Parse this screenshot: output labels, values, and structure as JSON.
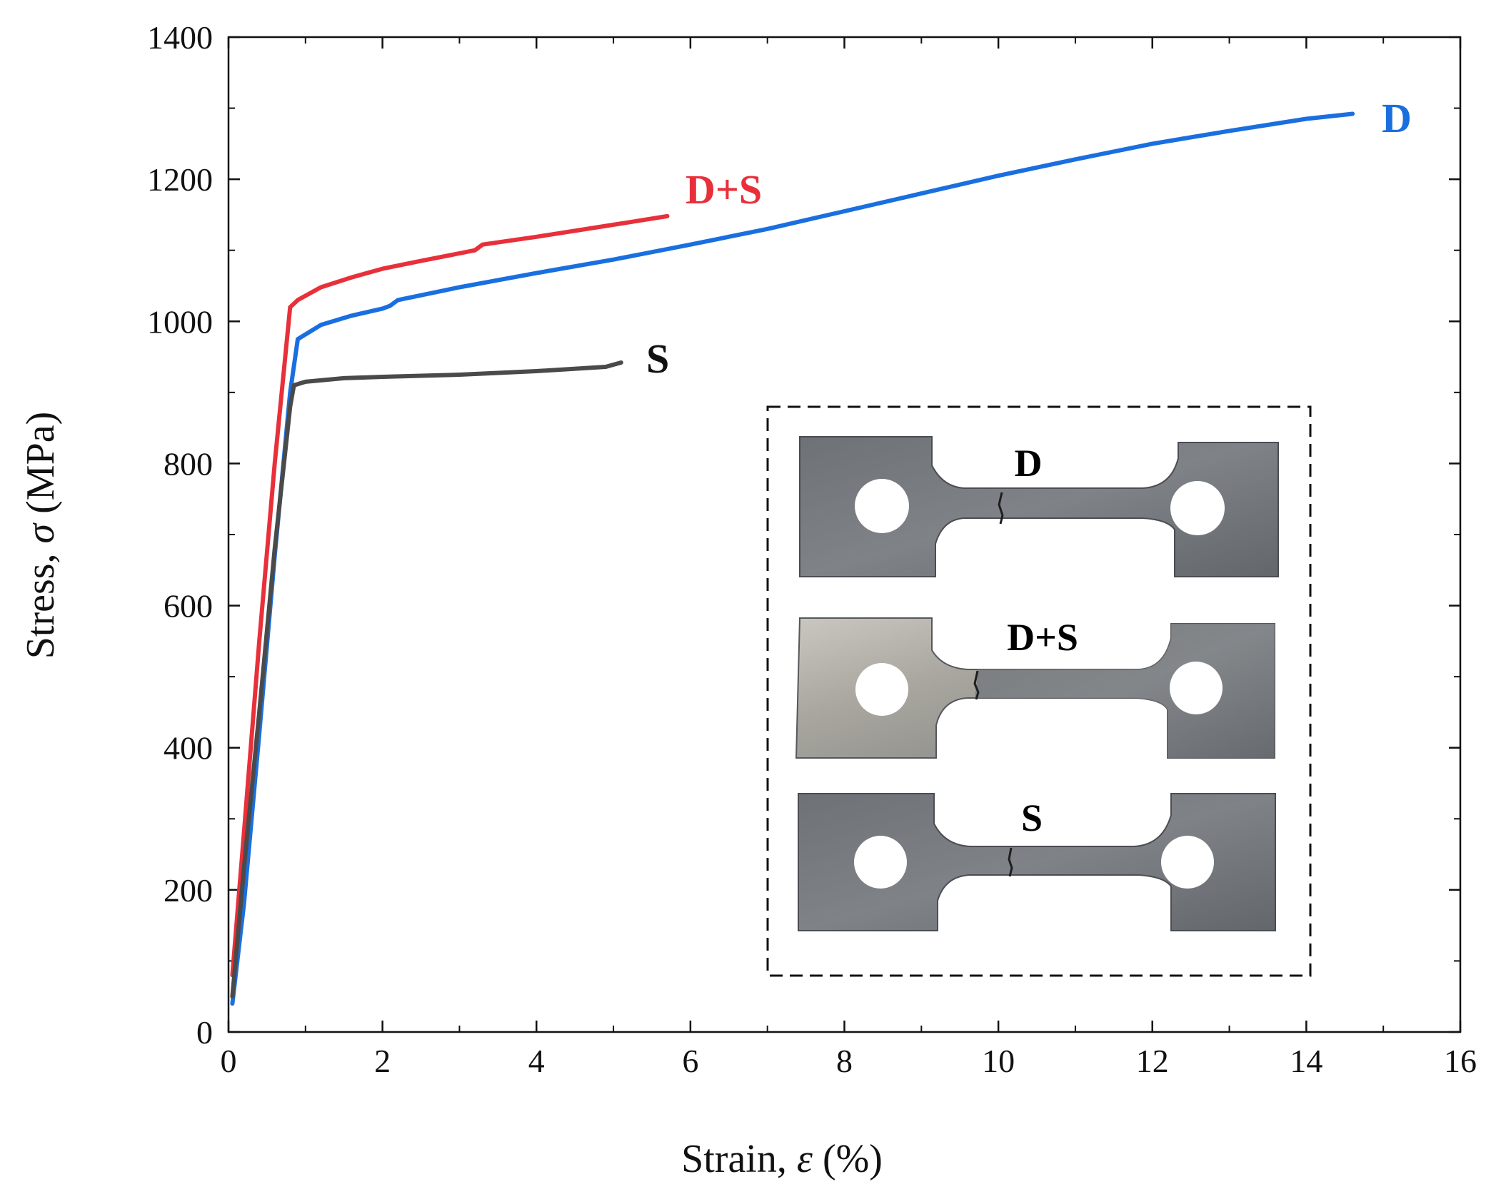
{
  "chart_data": {
    "type": "line",
    "title": "",
    "xlabel": "Strain, ε (%)",
    "ylabel": "Stress, σ (MPa)",
    "xlabel_parts": {
      "prefix": "Strain, ",
      "symbol": "ε",
      "suffix": " (%)"
    },
    "ylabel_parts": {
      "prefix": "Stress, ",
      "symbol": "σ",
      "suffix": " (MPa)"
    },
    "xlim": [
      0,
      16
    ],
    "ylim": [
      0,
      1400
    ],
    "x_ticks": [
      "0",
      "2",
      "4",
      "6",
      "8",
      "10",
      "12",
      "14",
      "16"
    ],
    "y_ticks": [
      "0",
      "200",
      "400",
      "600",
      "800",
      "1000",
      "1200",
      "1400"
    ],
    "grid": false,
    "legend": "none",
    "series": [
      {
        "name": "D",
        "color": "#1a6fe0",
        "x": [
          0.05,
          0.2,
          0.4,
          0.6,
          0.8,
          0.9,
          1.2,
          1.6,
          2.0,
          2.1,
          2.2,
          3,
          4,
          5,
          6,
          7,
          8,
          9,
          10,
          11,
          12,
          13,
          14,
          14.6
        ],
        "y": [
          40,
          180,
          420,
          670,
          900,
          975,
          995,
          1008,
          1018,
          1022,
          1030,
          1048,
          1068,
          1087,
          1108,
          1130,
          1155,
          1180,
          1205,
          1228,
          1250,
          1268,
          1285,
          1292
        ]
      },
      {
        "name": "D+S",
        "color": "#e8303a",
        "x": [
          0.05,
          0.2,
          0.4,
          0.6,
          0.8,
          0.9,
          1.2,
          1.6,
          2.0,
          2.5,
          3.2,
          3.3,
          4.0,
          5.0,
          5.7
        ],
        "y": [
          80,
          280,
          550,
          800,
          1020,
          1030,
          1048,
          1062,
          1074,
          1085,
          1100,
          1108,
          1119,
          1136,
          1148
        ]
      },
      {
        "name": "S",
        "color": "#4a4a4a",
        "x": [
          0.05,
          0.2,
          0.4,
          0.6,
          0.8,
          0.85,
          1.0,
          1.5,
          2.0,
          3.0,
          4.0,
          4.9,
          5.1
        ],
        "y": [
          50,
          230,
          450,
          680,
          880,
          910,
          915,
          920,
          922,
          925,
          930,
          936,
          942
        ]
      }
    ],
    "annotations": [
      "D",
      "D+S",
      "S"
    ]
  },
  "inset": {
    "labels": [
      "D",
      "D+S",
      "S"
    ]
  }
}
